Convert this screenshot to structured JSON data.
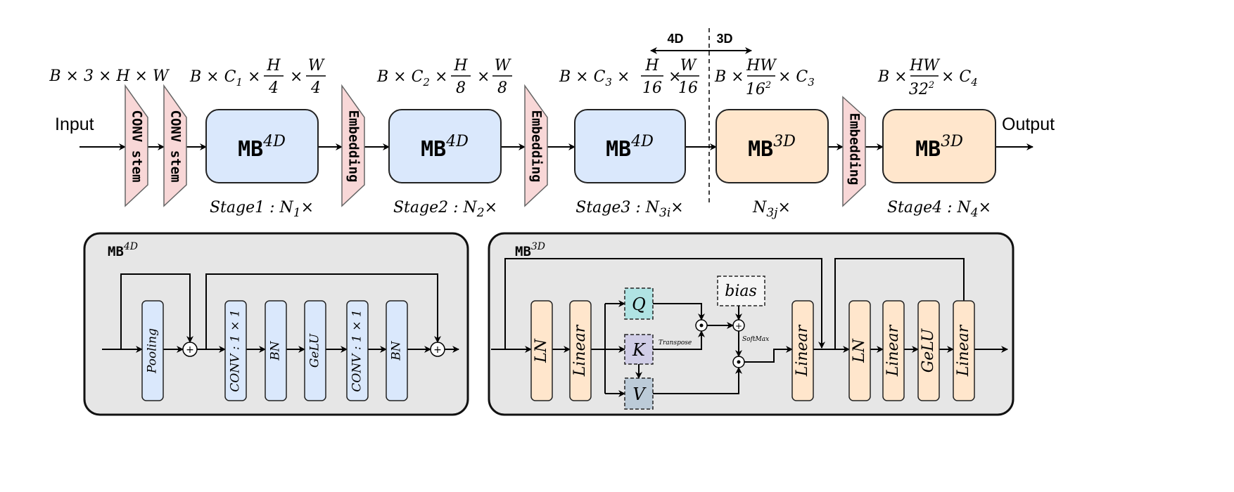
{
  "top": {
    "input_label": "Input",
    "output_label": "Output",
    "conv_stem": "CONV stem",
    "embedding": "Embedding",
    "mb4d": {
      "base": "MB",
      "sup": "4D"
    },
    "mb3d": {
      "base": "MB",
      "sup": "3D"
    },
    "divider": {
      "left": "4D",
      "right": "3D"
    },
    "dims": [
      {
        "text": "B × 3 × H × W"
      },
      {
        "prefix": "B × C",
        "sub": "1",
        "num1": "H",
        "den1": "4",
        "num2": "W",
        "den2": "4"
      },
      {
        "prefix": "B × C",
        "sub": "2",
        "num1": "H",
        "den1": "8",
        "num2": "W",
        "den2": "8"
      },
      {
        "prefix": "B × C",
        "sub": "3",
        "num1": "H",
        "den1": "16",
        "num2": "W",
        "den2": "16"
      },
      {
        "prefix": "B ×",
        "num": "HW",
        "den": "16",
        "den_sup": "2",
        "suffix": "× C",
        "suffix_sub": "3"
      },
      {
        "prefix": "B ×",
        "num": "HW",
        "den": "32",
        "den_sup": "2",
        "suffix": "× C",
        "suffix_sub": "4"
      }
    ],
    "stages": [
      {
        "label": "Stage1 : N",
        "sub": "1",
        "suffix": "×"
      },
      {
        "label": "Stage2 : N",
        "sub": "2",
        "suffix": "×"
      },
      {
        "label": "Stage3 : N",
        "sub": "3i",
        "suffix": "×"
      },
      {
        "label": "N",
        "sub": "3j",
        "suffix": "×"
      },
      {
        "label": "Stage4 : N",
        "sub": "4",
        "suffix": "×"
      }
    ]
  },
  "mb4d_panel": {
    "title": {
      "base": "MB",
      "sup": "4D"
    },
    "blocks": [
      "Pooling",
      "CONV : 1 × 1",
      "BN",
      "GeLU",
      "CONV : 1 × 1",
      "BN"
    ],
    "add_symbol": "+"
  },
  "mb3d_panel": {
    "title": {
      "base": "MB",
      "sup": "3D"
    },
    "blocks": [
      "LN",
      "Linear",
      "Linear",
      "LN",
      "Linear",
      "GeLU",
      "Linear"
    ],
    "q": "Q",
    "k": "K",
    "v": "V",
    "bias": "bias",
    "transpose": "Transpose",
    "softmax": "SoftMax",
    "add_symbol": "+",
    "mul_symbol": "•"
  },
  "colors": {
    "blue": "#dae8fc",
    "orange": "#ffe6cc",
    "pink": "#f8d7d7",
    "panel": "#e6e6e6",
    "q": "#b0e3e3",
    "k": "#d0cde6",
    "v": "#bccbd8",
    "bias": "#f5f5f5"
  }
}
